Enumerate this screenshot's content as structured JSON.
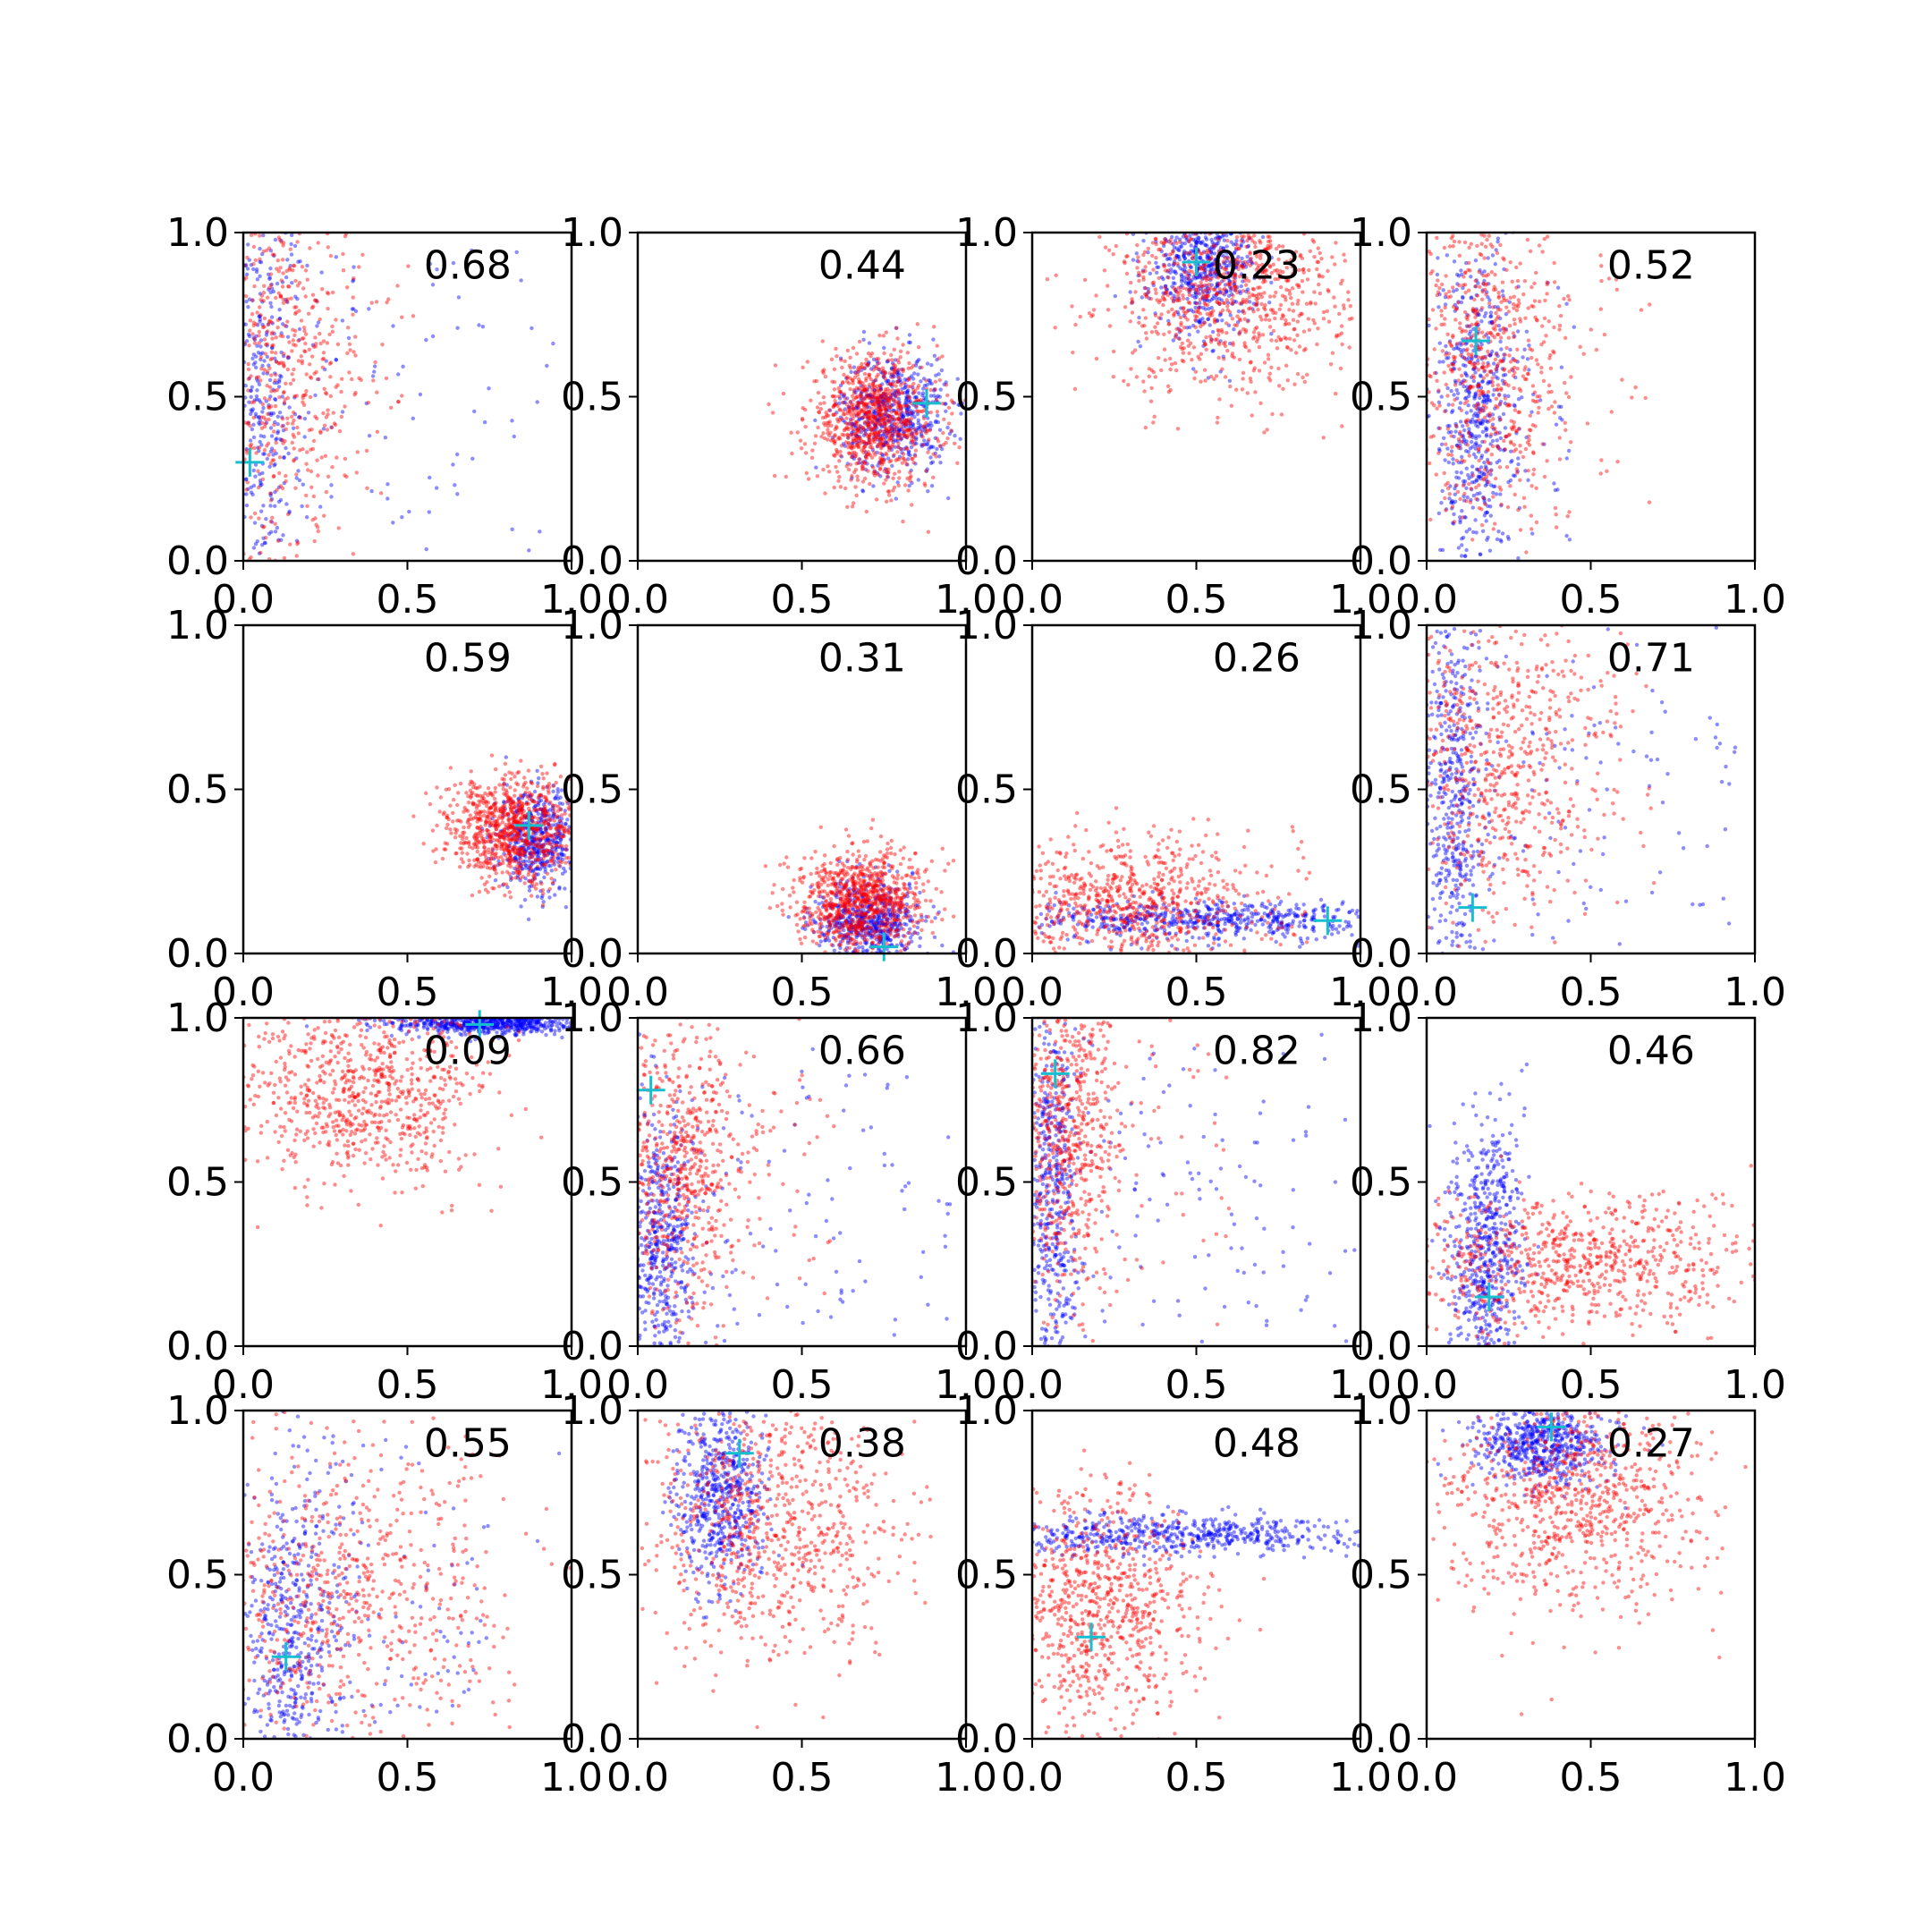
{
  "figure": {
    "layout": {
      "rows": 4,
      "cols": 4
    },
    "colors": {
      "series_a": "#ff0000",
      "series_b": "#0000ff",
      "marker": "#17becf",
      "axes": "#000000"
    }
  },
  "chart_data": [
    {
      "type": "scatter",
      "annotation": "0.68",
      "marker": [
        0.02,
        0.3
      ],
      "xlim": [
        0,
        1
      ],
      "ylim": [
        0,
        1
      ],
      "xticks": [
        "0.0",
        "0.5",
        "1.0"
      ],
      "yticks": [
        "0.0",
        "0.5",
        "1.0"
      ],
      "clusters": [
        {
          "series": "blue",
          "n": 500,
          "cx": 0.05,
          "cy": 0.55,
          "sx": 0.06,
          "sy": 0.35,
          "spread_x": 0.9,
          "tail": "x"
        },
        {
          "series": "red",
          "n": 600,
          "cx": 0.12,
          "cy": 0.6,
          "sx": 0.12,
          "sy": 0.3,
          "spread_x": 0.4,
          "tail": "none"
        }
      ]
    },
    {
      "type": "scatter",
      "annotation": "0.44",
      "marker": [
        0.88,
        0.48
      ],
      "xlim": [
        0,
        1
      ],
      "ylim": [
        0,
        1
      ],
      "xticks": [
        "0.0",
        "0.5",
        "1.0"
      ],
      "yticks": [
        "0.0",
        "0.5",
        "1.0"
      ],
      "clusters": [
        {
          "series": "blue",
          "n": 600,
          "cx": 0.78,
          "cy": 0.45,
          "sx": 0.08,
          "sy": 0.09,
          "spread_x": 0,
          "tail": "none"
        },
        {
          "series": "red",
          "n": 900,
          "cx": 0.72,
          "cy": 0.43,
          "sx": 0.1,
          "sy": 0.1,
          "spread_x": 0,
          "tail": "none"
        }
      ]
    },
    {
      "type": "scatter",
      "annotation": "0.23",
      "marker": [
        0.5,
        0.91
      ],
      "xlim": [
        0,
        1
      ],
      "ylim": [
        0,
        1
      ],
      "xticks": [
        "0.0",
        "0.5",
        "1.0"
      ],
      "yticks": [
        "0.0",
        "0.5",
        "1.0"
      ],
      "clusters": [
        {
          "series": "blue",
          "n": 600,
          "cx": 0.52,
          "cy": 0.9,
          "sx": 0.08,
          "sy": 0.1,
          "spread_x": 0,
          "tail": "none"
        },
        {
          "series": "red",
          "n": 900,
          "cx": 0.6,
          "cy": 0.82,
          "sx": 0.18,
          "sy": 0.15,
          "spread_x": 0,
          "tail": "none"
        }
      ]
    },
    {
      "type": "scatter",
      "annotation": "0.52",
      "marker": [
        0.15,
        0.67
      ],
      "xlim": [
        0,
        1
      ],
      "ylim": [
        0,
        1
      ],
      "xticks": [
        "0.0",
        "0.5",
        "1.0"
      ],
      "yticks": [
        "0.0",
        "0.5",
        "1.0"
      ],
      "clusters": [
        {
          "series": "blue",
          "n": 600,
          "cx": 0.15,
          "cy": 0.45,
          "sx": 0.06,
          "sy": 0.25,
          "spread_x": 0.3,
          "tail": "none"
        },
        {
          "series": "red",
          "n": 700,
          "cx": 0.18,
          "cy": 0.6,
          "sx": 0.12,
          "sy": 0.25,
          "spread_x": 0.5,
          "tail": "none"
        }
      ]
    },
    {
      "type": "scatter",
      "annotation": "0.59",
      "marker": [
        0.87,
        0.39
      ],
      "xlim": [
        0,
        1
      ],
      "ylim": [
        0,
        1
      ],
      "xticks": [
        "0.0",
        "0.5",
        "1.0"
      ],
      "yticks": [
        "0.0",
        "0.5",
        "1.0"
      ],
      "clusters": [
        {
          "series": "blue",
          "n": 500,
          "cx": 0.9,
          "cy": 0.35,
          "sx": 0.06,
          "sy": 0.08,
          "spread_x": 0,
          "tail": "none"
        },
        {
          "series": "red",
          "n": 900,
          "cx": 0.82,
          "cy": 0.38,
          "sx": 0.1,
          "sy": 0.08,
          "spread_x": 0,
          "tail": "none"
        }
      ]
    },
    {
      "type": "scatter",
      "annotation": "0.31",
      "marker": [
        0.75,
        0.02
      ],
      "xlim": [
        0,
        1
      ],
      "ylim": [
        0,
        1
      ],
      "xticks": [
        "0.0",
        "0.5",
        "1.0"
      ],
      "yticks": [
        "0.0",
        "0.5",
        "1.0"
      ],
      "clusters": [
        {
          "series": "blue",
          "n": 600,
          "cx": 0.7,
          "cy": 0.1,
          "sx": 0.08,
          "sy": 0.06,
          "spread_x": 0,
          "tail": "none"
        },
        {
          "series": "red",
          "n": 900,
          "cx": 0.68,
          "cy": 0.16,
          "sx": 0.1,
          "sy": 0.08,
          "spread_x": 0,
          "tail": "none"
        }
      ]
    },
    {
      "type": "scatter",
      "annotation": "0.26",
      "marker": [
        0.9,
        0.1
      ],
      "xlim": [
        0,
        1
      ],
      "ylim": [
        0,
        1
      ],
      "xticks": [
        "0.0",
        "0.5",
        "1.0"
      ],
      "yticks": [
        "0.0",
        "0.5",
        "1.0"
      ],
      "clusters": [
        {
          "series": "blue",
          "n": 600,
          "cx": 0.5,
          "cy": 0.1,
          "sx": 0.3,
          "sy": 0.03,
          "spread_x": 0,
          "tail": "none"
        },
        {
          "series": "red",
          "n": 800,
          "cx": 0.25,
          "cy": 0.15,
          "sx": 0.2,
          "sy": 0.1,
          "spread_x": 0.6,
          "tail": "none"
        }
      ]
    },
    {
      "type": "scatter",
      "annotation": "0.71",
      "marker": [
        0.14,
        0.14
      ],
      "xlim": [
        0,
        1
      ],
      "ylim": [
        0,
        1
      ],
      "xticks": [
        "0.0",
        "0.5",
        "1.0"
      ],
      "yticks": [
        "0.0",
        "0.5",
        "1.0"
      ],
      "clusters": [
        {
          "series": "blue",
          "n": 600,
          "cx": 0.08,
          "cy": 0.45,
          "sx": 0.05,
          "sy": 0.3,
          "spread_x": 0.9,
          "tail": "x"
        },
        {
          "series": "red",
          "n": 700,
          "cx": 0.2,
          "cy": 0.6,
          "sx": 0.15,
          "sy": 0.25,
          "spread_x": 0.5,
          "tail": "none"
        }
      ]
    },
    {
      "type": "scatter",
      "annotation": "0.09",
      "marker": [
        0.72,
        0.98
      ],
      "xlim": [
        0,
        1
      ],
      "ylim": [
        0,
        1
      ],
      "xticks": [
        "0.0",
        "0.5",
        "1.0"
      ],
      "yticks": [
        "0.0",
        "0.5",
        "1.0"
      ],
      "clusters": [
        {
          "series": "blue",
          "n": 600,
          "cx": 0.75,
          "cy": 0.98,
          "sx": 0.15,
          "sy": 0.015,
          "spread_x": 0,
          "tail": "none"
        },
        {
          "series": "red",
          "n": 800,
          "cx": 0.35,
          "cy": 0.78,
          "sx": 0.2,
          "sy": 0.15,
          "spread_x": 0.3,
          "tail": "none"
        }
      ]
    },
    {
      "type": "scatter",
      "annotation": "0.66",
      "marker": [
        0.04,
        0.78
      ],
      "xlim": [
        0,
        1
      ],
      "ylim": [
        0,
        1
      ],
      "xticks": [
        "0.0",
        "0.5",
        "1.0"
      ],
      "yticks": [
        "0.0",
        "0.5",
        "1.0"
      ],
      "clusters": [
        {
          "series": "blue",
          "n": 600,
          "cx": 0.07,
          "cy": 0.3,
          "sx": 0.05,
          "sy": 0.2,
          "spread_x": 0.9,
          "tail": "x"
        },
        {
          "series": "red",
          "n": 700,
          "cx": 0.12,
          "cy": 0.55,
          "sx": 0.1,
          "sy": 0.25,
          "spread_x": 0.5,
          "tail": "none"
        }
      ]
    },
    {
      "type": "scatter",
      "annotation": "0.82",
      "marker": [
        0.07,
        0.83
      ],
      "xlim": [
        0,
        1
      ],
      "ylim": [
        0,
        1
      ],
      "xticks": [
        "0.0",
        "0.5",
        "1.0"
      ],
      "yticks": [
        "0.0",
        "0.5",
        "1.0"
      ],
      "clusters": [
        {
          "series": "blue",
          "n": 600,
          "cx": 0.06,
          "cy": 0.45,
          "sx": 0.04,
          "sy": 0.3,
          "spread_x": 0.9,
          "tail": "x"
        },
        {
          "series": "red",
          "n": 700,
          "cx": 0.1,
          "cy": 0.65,
          "sx": 0.08,
          "sy": 0.25,
          "spread_x": 0.5,
          "tail": "none"
        }
      ]
    },
    {
      "type": "scatter",
      "annotation": "0.46",
      "marker": [
        0.19,
        0.15
      ],
      "xlim": [
        0,
        1
      ],
      "ylim": [
        0,
        1
      ],
      "xticks": [
        "0.0",
        "0.5",
        "1.0"
      ],
      "yticks": [
        "0.0",
        "0.5",
        "1.0"
      ],
      "clusters": [
        {
          "series": "blue",
          "n": 600,
          "cx": 0.18,
          "cy": 0.3,
          "sx": 0.06,
          "sy": 0.2,
          "spread_x": 0,
          "tail": "none"
        },
        {
          "series": "red",
          "n": 800,
          "cx": 0.4,
          "cy": 0.25,
          "sx": 0.3,
          "sy": 0.1,
          "spread_x": 0,
          "tail": "none"
        }
      ]
    },
    {
      "type": "scatter",
      "annotation": "0.55",
      "marker": [
        0.13,
        0.25
      ],
      "xlim": [
        0,
        1
      ],
      "ylim": [
        0,
        1
      ],
      "xticks": [
        "0.0",
        "0.5",
        "1.0"
      ],
      "yticks": [
        "0.0",
        "0.5",
        "1.0"
      ],
      "clusters": [
        {
          "series": "blue",
          "n": 600,
          "cx": 0.15,
          "cy": 0.3,
          "sx": 0.08,
          "sy": 0.25,
          "spread_x": 0.6,
          "tail": "x"
        },
        {
          "series": "red",
          "n": 700,
          "cx": 0.3,
          "cy": 0.45,
          "sx": 0.25,
          "sy": 0.25,
          "spread_x": 0,
          "tail": "none"
        }
      ]
    },
    {
      "type": "scatter",
      "annotation": "0.38",
      "marker": [
        0.31,
        0.87
      ],
      "xlim": [
        0,
        1
      ],
      "ylim": [
        0,
        1
      ],
      "xticks": [
        "0.0",
        "0.5",
        "1.0"
      ],
      "yticks": [
        "0.0",
        "0.5",
        "1.0"
      ],
      "clusters": [
        {
          "series": "blue",
          "n": 600,
          "cx": 0.25,
          "cy": 0.75,
          "sx": 0.07,
          "sy": 0.15,
          "spread_x": 0,
          "tail": "none"
        },
        {
          "series": "red",
          "n": 800,
          "cx": 0.4,
          "cy": 0.65,
          "sx": 0.2,
          "sy": 0.2,
          "spread_x": 0,
          "tail": "none"
        }
      ]
    },
    {
      "type": "scatter",
      "annotation": "0.48",
      "marker": [
        0.18,
        0.31
      ],
      "xlim": [
        0,
        1
      ],
      "ylim": [
        0,
        1
      ],
      "xticks": [
        "0.0",
        "0.5",
        "1.0"
      ],
      "yticks": [
        "0.0",
        "0.5",
        "1.0"
      ],
      "clusters": [
        {
          "series": "blue",
          "n": 600,
          "cx": 0.45,
          "cy": 0.62,
          "sx": 0.3,
          "sy": 0.03,
          "spread_x": 0,
          "tail": "none"
        },
        {
          "series": "red",
          "n": 800,
          "cx": 0.2,
          "cy": 0.4,
          "sx": 0.15,
          "sy": 0.2,
          "spread_x": 0,
          "tail": "none"
        }
      ]
    },
    {
      "type": "scatter",
      "annotation": "0.27",
      "marker": [
        0.38,
        0.95
      ],
      "xlim": [
        0,
        1
      ],
      "ylim": [
        0,
        1
      ],
      "xticks": [
        "0.0",
        "0.5",
        "1.0"
      ],
      "yticks": [
        "0.0",
        "0.5",
        "1.0"
      ],
      "clusters": [
        {
          "series": "blue",
          "n": 600,
          "cx": 0.35,
          "cy": 0.9,
          "sx": 0.1,
          "sy": 0.06,
          "spread_x": 0,
          "tail": "none"
        },
        {
          "series": "red",
          "n": 800,
          "cx": 0.45,
          "cy": 0.72,
          "sx": 0.2,
          "sy": 0.18,
          "spread_x": 0,
          "tail": "none"
        }
      ]
    }
  ]
}
